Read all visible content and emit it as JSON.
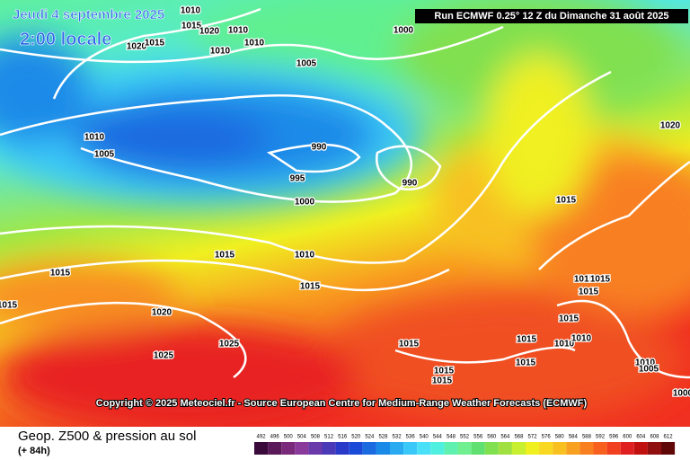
{
  "header": {
    "date": "Jeudi 4 septembre 2025",
    "time": "2:00 locale",
    "run": "Run ECMWF 0.25° 12 Z du Dimanche 31 août 2025"
  },
  "isobar_labels": [
    "1010",
    "1015",
    "1020",
    "1010",
    "1010",
    "1010",
    "1020",
    "1015",
    "1000",
    "1005",
    "1010",
    "1005",
    "990",
    "995",
    "990",
    "1000",
    "1015",
    "1010",
    "1015",
    "1015",
    "1015",
    "1020",
    "1015",
    "1020",
    "1025",
    "1025",
    "1015",
    "1015",
    "1015",
    "1015",
    "1015",
    "1015",
    "1010",
    "1010",
    "1015",
    "1015",
    "1015",
    "1010",
    "1005",
    "1000"
  ],
  "copyright": "Copyright © 2025 Meteociel.fr - Source European Centre for Medium-Range Weather Forecasts (ECMWF)",
  "footer": {
    "title": "Geop. Z500 & pression au sol",
    "lead": "(+ 84h)"
  },
  "legend": {
    "values": [
      492,
      496,
      500,
      504,
      508,
      512,
      516,
      520,
      524,
      528,
      532,
      536,
      540,
      544,
      548,
      552,
      556,
      560,
      564,
      568,
      572,
      576,
      580,
      584,
      588,
      592,
      596,
      600,
      604,
      608,
      612
    ],
    "colors": [
      "#3a0a3a",
      "#5a1a5a",
      "#7a2a7a",
      "#8a3a9a",
      "#6a3aaa",
      "#4a3ab8",
      "#2a3ac8",
      "#1a4ad8",
      "#1a6ae0",
      "#1a8ae8",
      "#2aaaf0",
      "#3ac8f8",
      "#4ae0f8",
      "#50f0e0",
      "#60f0b0",
      "#70f090",
      "#60e070",
      "#80e050",
      "#a0e040",
      "#c8f030",
      "#f0f020",
      "#f8d820",
      "#f8c020",
      "#f8a020",
      "#f88020",
      "#f86020",
      "#f04020",
      "#e02020",
      "#c01010",
      "#901010",
      "#600808"
    ]
  }
}
